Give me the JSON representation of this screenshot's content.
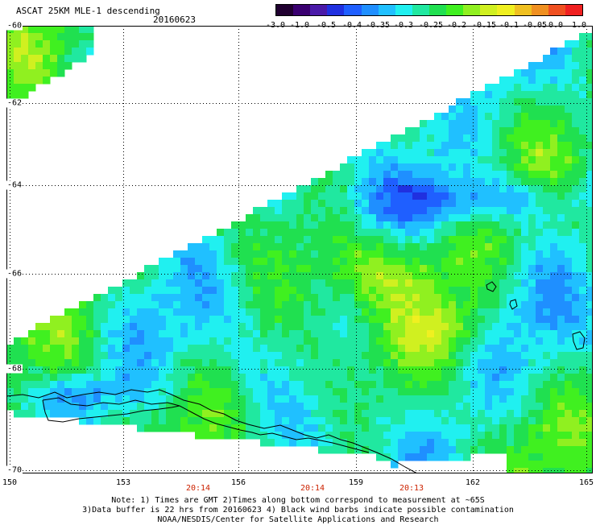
{
  "header": {
    "title": "ASCAT 25KM MLE-1 descending",
    "date": "20160623"
  },
  "colorbar": {
    "colors": [
      "#200030",
      "#3a0070",
      "#4a1aa8",
      "#2030e0",
      "#1f5fff",
      "#1f8fff",
      "#20c0ff",
      "#20f0f0",
      "#20e8a0",
      "#20e050",
      "#40f020",
      "#90f020",
      "#d0f020",
      "#f0f020",
      "#f0c020",
      "#f09020",
      "#f05020",
      "#f02020"
    ],
    "labels": [
      "-3.0",
      "-1.0",
      "-0.5",
      "-0.4",
      "-0.35",
      "-0.3",
      "-0.25",
      "-0.2",
      "-0.15",
      "-0.1",
      "-0.05",
      "0.0",
      "1.0"
    ]
  },
  "axes": {
    "lat_labels": [
      "-60",
      "-62",
      "-64",
      "-66",
      "-68",
      "-70"
    ],
    "lon_labels": [
      "150",
      "153",
      "156",
      "159",
      "162",
      "165"
    ],
    "time_labels": [
      "20:14",
      "20:14",
      "20:13"
    ]
  },
  "notes": {
    "line1": "Note: 1) Times are GMT 2)Times along bottom correspond to measurement at ~65S",
    "line2": "3)Data buffer is 22 hrs from 20160623 4) Black wind barbs indicate possible contamination",
    "line3": "NOAA/NESDIS/Center for Satellite Applications and Research"
  }
}
